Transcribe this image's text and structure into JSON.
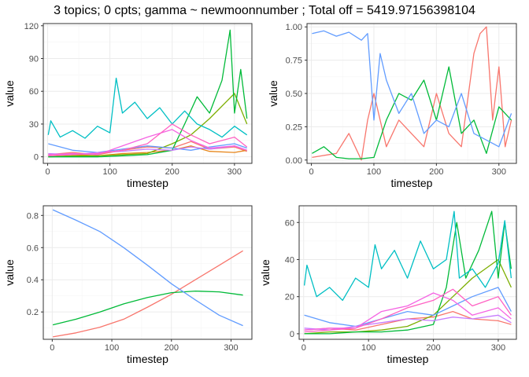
{
  "title": "3 topics; 0 cpts; gamma ~ newmoonnumber ; Total off =  5419.97156398104",
  "colors": {
    "topic1": "#F8766D",
    "topic2": "#00BA38",
    "topic3": "#619CFF",
    "panel_bg": "#ffffff",
    "grid_major": "#ebebeb",
    "grid_minor": "#f5f5f5",
    "border": "#333333"
  },
  "chart_data": [
    {
      "id": "top-left",
      "type": "line",
      "xlabel": "timestep",
      "ylabel": "value",
      "xlim": [
        -7,
        328
      ],
      "ylim": [
        -6,
        122
      ],
      "xticks": [
        "0",
        "100",
        "200",
        "300"
      ],
      "yticks": [
        "0",
        "30",
        "60",
        "90",
        "120"
      ],
      "xtick_values": [
        0,
        100,
        200,
        300
      ],
      "ytick_values": [
        0,
        30,
        60,
        90,
        120
      ],
      "grid": true,
      "series_note": "many series (one per species); values approximate",
      "series": [
        {
          "color": "#F8766D",
          "x": [
            1,
            40,
            80,
            120,
            160,
            200,
            230,
            260,
            300,
            320
          ],
          "values": [
            2,
            4,
            2,
            6,
            9,
            8,
            14,
            7,
            9,
            5
          ]
        },
        {
          "color": "#E7861B",
          "x": [
            1,
            40,
            80,
            120,
            160,
            200,
            230,
            260,
            300,
            320
          ],
          "values": [
            1,
            2,
            1,
            3,
            4,
            6,
            10,
            5,
            4,
            6
          ]
        },
        {
          "color": "#7CAE00",
          "x": [
            1,
            40,
            80,
            120,
            160,
            200,
            230,
            260,
            300,
            320
          ],
          "values": [
            0,
            1,
            1,
            2,
            3,
            12,
            20,
            35,
            58,
            30
          ]
        },
        {
          "color": "#00BA38",
          "x": [
            1,
            40,
            80,
            120,
            160,
            200,
            220,
            240,
            260,
            280,
            293,
            300,
            310,
            320
          ],
          "values": [
            0,
            0,
            0,
            1,
            2,
            6,
            30,
            55,
            40,
            70,
            116,
            40,
            80,
            35
          ]
        },
        {
          "color": "#00BFC4",
          "x": [
            1,
            5,
            20,
            40,
            60,
            80,
            100,
            110,
            120,
            140,
            160,
            180,
            200,
            220,
            240,
            260,
            280,
            300,
            320
          ],
          "values": [
            20,
            33,
            18,
            24,
            17,
            28,
            22,
            72,
            40,
            50,
            35,
            45,
            30,
            42,
            30,
            25,
            18,
            28,
            20
          ]
        },
        {
          "color": "#619CFF",
          "x": [
            1,
            40,
            80,
            120,
            160,
            200,
            230,
            260,
            300,
            320
          ],
          "values": [
            12,
            6,
            4,
            7,
            10,
            8,
            6,
            9,
            12,
            8
          ]
        },
        {
          "color": "#C77CFF",
          "x": [
            1,
            40,
            80,
            120,
            160,
            200,
            230,
            260,
            300,
            320
          ],
          "values": [
            3,
            2,
            4,
            5,
            7,
            6,
            9,
            7,
            10,
            6
          ]
        },
        {
          "color": "#F564E3",
          "x": [
            1,
            40,
            80,
            120,
            160,
            200,
            230,
            260,
            300,
            320
          ],
          "values": [
            2,
            3,
            2,
            10,
            18,
            25,
            15,
            8,
            10,
            6
          ]
        },
        {
          "color": "#FF61C3",
          "x": [
            1,
            40,
            80,
            120,
            160,
            200,
            230,
            260,
            300,
            320
          ],
          "values": [
            1,
            2,
            3,
            6,
            12,
            30,
            20,
            12,
            18,
            9
          ]
        }
      ]
    },
    {
      "id": "top-right",
      "type": "line",
      "xlabel": "timestep",
      "ylabel": "value",
      "xlim": [
        -7,
        328
      ],
      "ylim": [
        -0.025,
        1.025
      ],
      "xticks": [
        "0",
        "100",
        "200",
        "300"
      ],
      "yticks": [
        "0.00",
        "0.25",
        "0.50",
        "0.75",
        "1.00"
      ],
      "xtick_values": [
        0,
        100,
        200,
        300
      ],
      "ytick_values": [
        0,
        0.25,
        0.5,
        0.75,
        1.0
      ],
      "grid": true,
      "series": [
        {
          "color": "#F8766D",
          "x": [
            1,
            40,
            60,
            80,
            90,
            100,
            120,
            140,
            160,
            180,
            200,
            220,
            240,
            260,
            270,
            280,
            290,
            300,
            310,
            320
          ],
          "values": [
            0.02,
            0.05,
            0.2,
            0.0,
            0.3,
            0.5,
            0.1,
            0.3,
            0.2,
            0.1,
            0.5,
            0.2,
            0.1,
            0.8,
            0.95,
            1.0,
            0.3,
            0.7,
            0.1,
            0.3
          ]
        },
        {
          "color": "#00BA38",
          "x": [
            1,
            20,
            40,
            60,
            80,
            100,
            120,
            140,
            160,
            180,
            200,
            220,
            240,
            260,
            280,
            300,
            320
          ],
          "values": [
            0.05,
            0.1,
            0.02,
            0.01,
            0.01,
            0.02,
            0.3,
            0.5,
            0.45,
            0.6,
            0.3,
            0.7,
            0.2,
            0.3,
            0.05,
            0.4,
            0.3
          ]
        },
        {
          "color": "#619CFF",
          "x": [
            1,
            20,
            40,
            60,
            80,
            90,
            100,
            110,
            120,
            140,
            160,
            180,
            200,
            220,
            240,
            260,
            280,
            300,
            320
          ],
          "values": [
            0.95,
            0.97,
            0.93,
            0.96,
            0.9,
            0.95,
            0.3,
            0.8,
            0.6,
            0.35,
            0.5,
            0.2,
            0.3,
            0.25,
            0.5,
            0.2,
            0.15,
            0.1,
            0.35
          ]
        }
      ]
    },
    {
      "id": "bottom-left",
      "type": "line",
      "xlabel": "timestep",
      "ylabel": "value",
      "xlim": [
        -15,
        335
      ],
      "ylim": [
        0.03,
        0.86
      ],
      "xticks": [
        "0",
        "100",
        "200",
        "300"
      ],
      "yticks": [
        "0.2",
        "0.4",
        "0.6",
        "0.8"
      ],
      "xtick_values": [
        0,
        100,
        200,
        300
      ],
      "ytick_values": [
        0.2,
        0.4,
        0.6,
        0.8
      ],
      "grid": true,
      "series": [
        {
          "color": "#F8766D",
          "x": [
            1,
            40,
            80,
            120,
            160,
            200,
            240,
            280,
            320
          ],
          "values": [
            0.045,
            0.07,
            0.105,
            0.155,
            0.23,
            0.31,
            0.4,
            0.49,
            0.58
          ]
        },
        {
          "color": "#00BA38",
          "x": [
            1,
            40,
            80,
            120,
            160,
            200,
            240,
            280,
            320
          ],
          "values": [
            0.12,
            0.155,
            0.2,
            0.25,
            0.29,
            0.32,
            0.33,
            0.325,
            0.305
          ]
        },
        {
          "color": "#619CFF",
          "x": [
            1,
            40,
            80,
            120,
            160,
            200,
            240,
            280,
            320
          ],
          "values": [
            0.835,
            0.77,
            0.7,
            0.6,
            0.49,
            0.375,
            0.275,
            0.18,
            0.115
          ]
        }
      ]
    },
    {
      "id": "bottom-right",
      "type": "line",
      "xlabel": "timestep",
      "ylabel": "value",
      "xlim": [
        -7,
        328
      ],
      "ylim": [
        -3,
        69
      ],
      "xticks": [
        "0",
        "100",
        "200",
        "300"
      ],
      "yticks": [
        "0",
        "20",
        "40",
        "60"
      ],
      "xtick_values": [
        0,
        100,
        200,
        300
      ],
      "ytick_values": [
        0,
        20,
        40,
        60
      ],
      "grid": true,
      "series_note": "many series (one per species); values approximate",
      "series": [
        {
          "color": "#F8766D",
          "x": [
            1,
            40,
            80,
            120,
            160,
            200,
            230,
            260,
            300,
            320
          ],
          "values": [
            2,
            3,
            2,
            5,
            8,
            9,
            12,
            8,
            7,
            5
          ]
        },
        {
          "color": "#7CAE00",
          "x": [
            1,
            40,
            80,
            120,
            160,
            200,
            230,
            260,
            300,
            320
          ],
          "values": [
            0,
            1,
            1,
            2,
            4,
            10,
            20,
            30,
            40,
            25
          ]
        },
        {
          "color": "#00BA38",
          "x": [
            1,
            40,
            80,
            120,
            160,
            200,
            220,
            236,
            250,
            270,
            290,
            300,
            310,
            320
          ],
          "values": [
            0,
            0,
            1,
            1,
            2,
            5,
            25,
            60,
            30,
            45,
            66,
            30,
            60,
            35
          ]
        },
        {
          "color": "#00BFC4",
          "x": [
            1,
            5,
            20,
            40,
            60,
            80,
            100,
            110,
            120,
            140,
            160,
            180,
            200,
            220,
            232,
            240,
            260,
            280,
            300,
            310,
            320
          ],
          "values": [
            26,
            37,
            20,
            25,
            18,
            30,
            25,
            48,
            35,
            45,
            30,
            50,
            35,
            40,
            66,
            30,
            35,
            25,
            38,
            61,
            30
          ]
        },
        {
          "color": "#619CFF",
          "x": [
            1,
            40,
            80,
            120,
            160,
            200,
            230,
            260,
            300,
            320
          ],
          "values": [
            10,
            6,
            4,
            8,
            12,
            10,
            15,
            20,
            25,
            12
          ]
        },
        {
          "color": "#C77CFF",
          "x": [
            1,
            40,
            80,
            120,
            160,
            200,
            230,
            260,
            300,
            320
          ],
          "values": [
            3,
            2,
            4,
            6,
            8,
            7,
            9,
            8,
            10,
            6
          ]
        },
        {
          "color": "#F564E3",
          "x": [
            1,
            40,
            80,
            120,
            160,
            200,
            230,
            260,
            300,
            320
          ],
          "values": [
            2,
            3,
            3,
            12,
            15,
            22,
            18,
            10,
            14,
            8
          ]
        },
        {
          "color": "#FF61C3",
          "x": [
            1,
            40,
            80,
            120,
            160,
            200,
            230,
            260,
            300,
            320
          ],
          "values": [
            1,
            2,
            3,
            8,
            14,
            18,
            24,
            15,
            20,
            10
          ]
        }
      ]
    }
  ]
}
